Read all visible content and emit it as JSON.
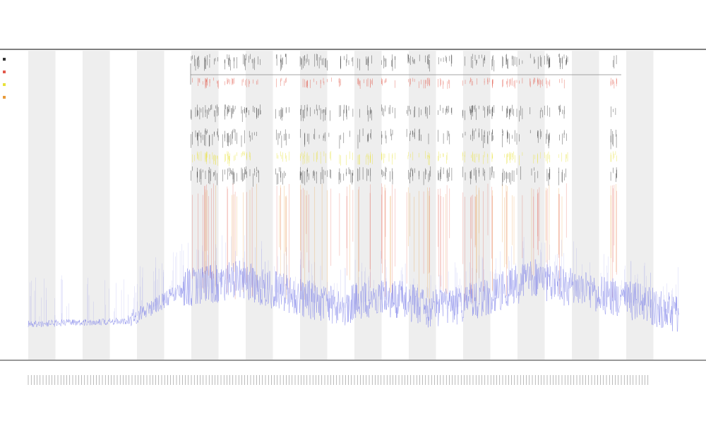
{
  "chart_data": {
    "type": "line",
    "title": "",
    "subtitles": [],
    "xlabel": "",
    "ylabel": "",
    "grid": "alternating-bands",
    "legend": "top-left",
    "y_range": [
      0,
      1
    ],
    "x_range": [
      0,
      1
    ],
    "series_colors": {
      "signal": "#7b7fe8",
      "events_red": "#e25a4c",
      "events_yellow": "#e8e23a",
      "events_orange": "#e89a3a",
      "events_dark": "#333333",
      "band": "#eeeeee",
      "axis": "#555555"
    }
  }
}
